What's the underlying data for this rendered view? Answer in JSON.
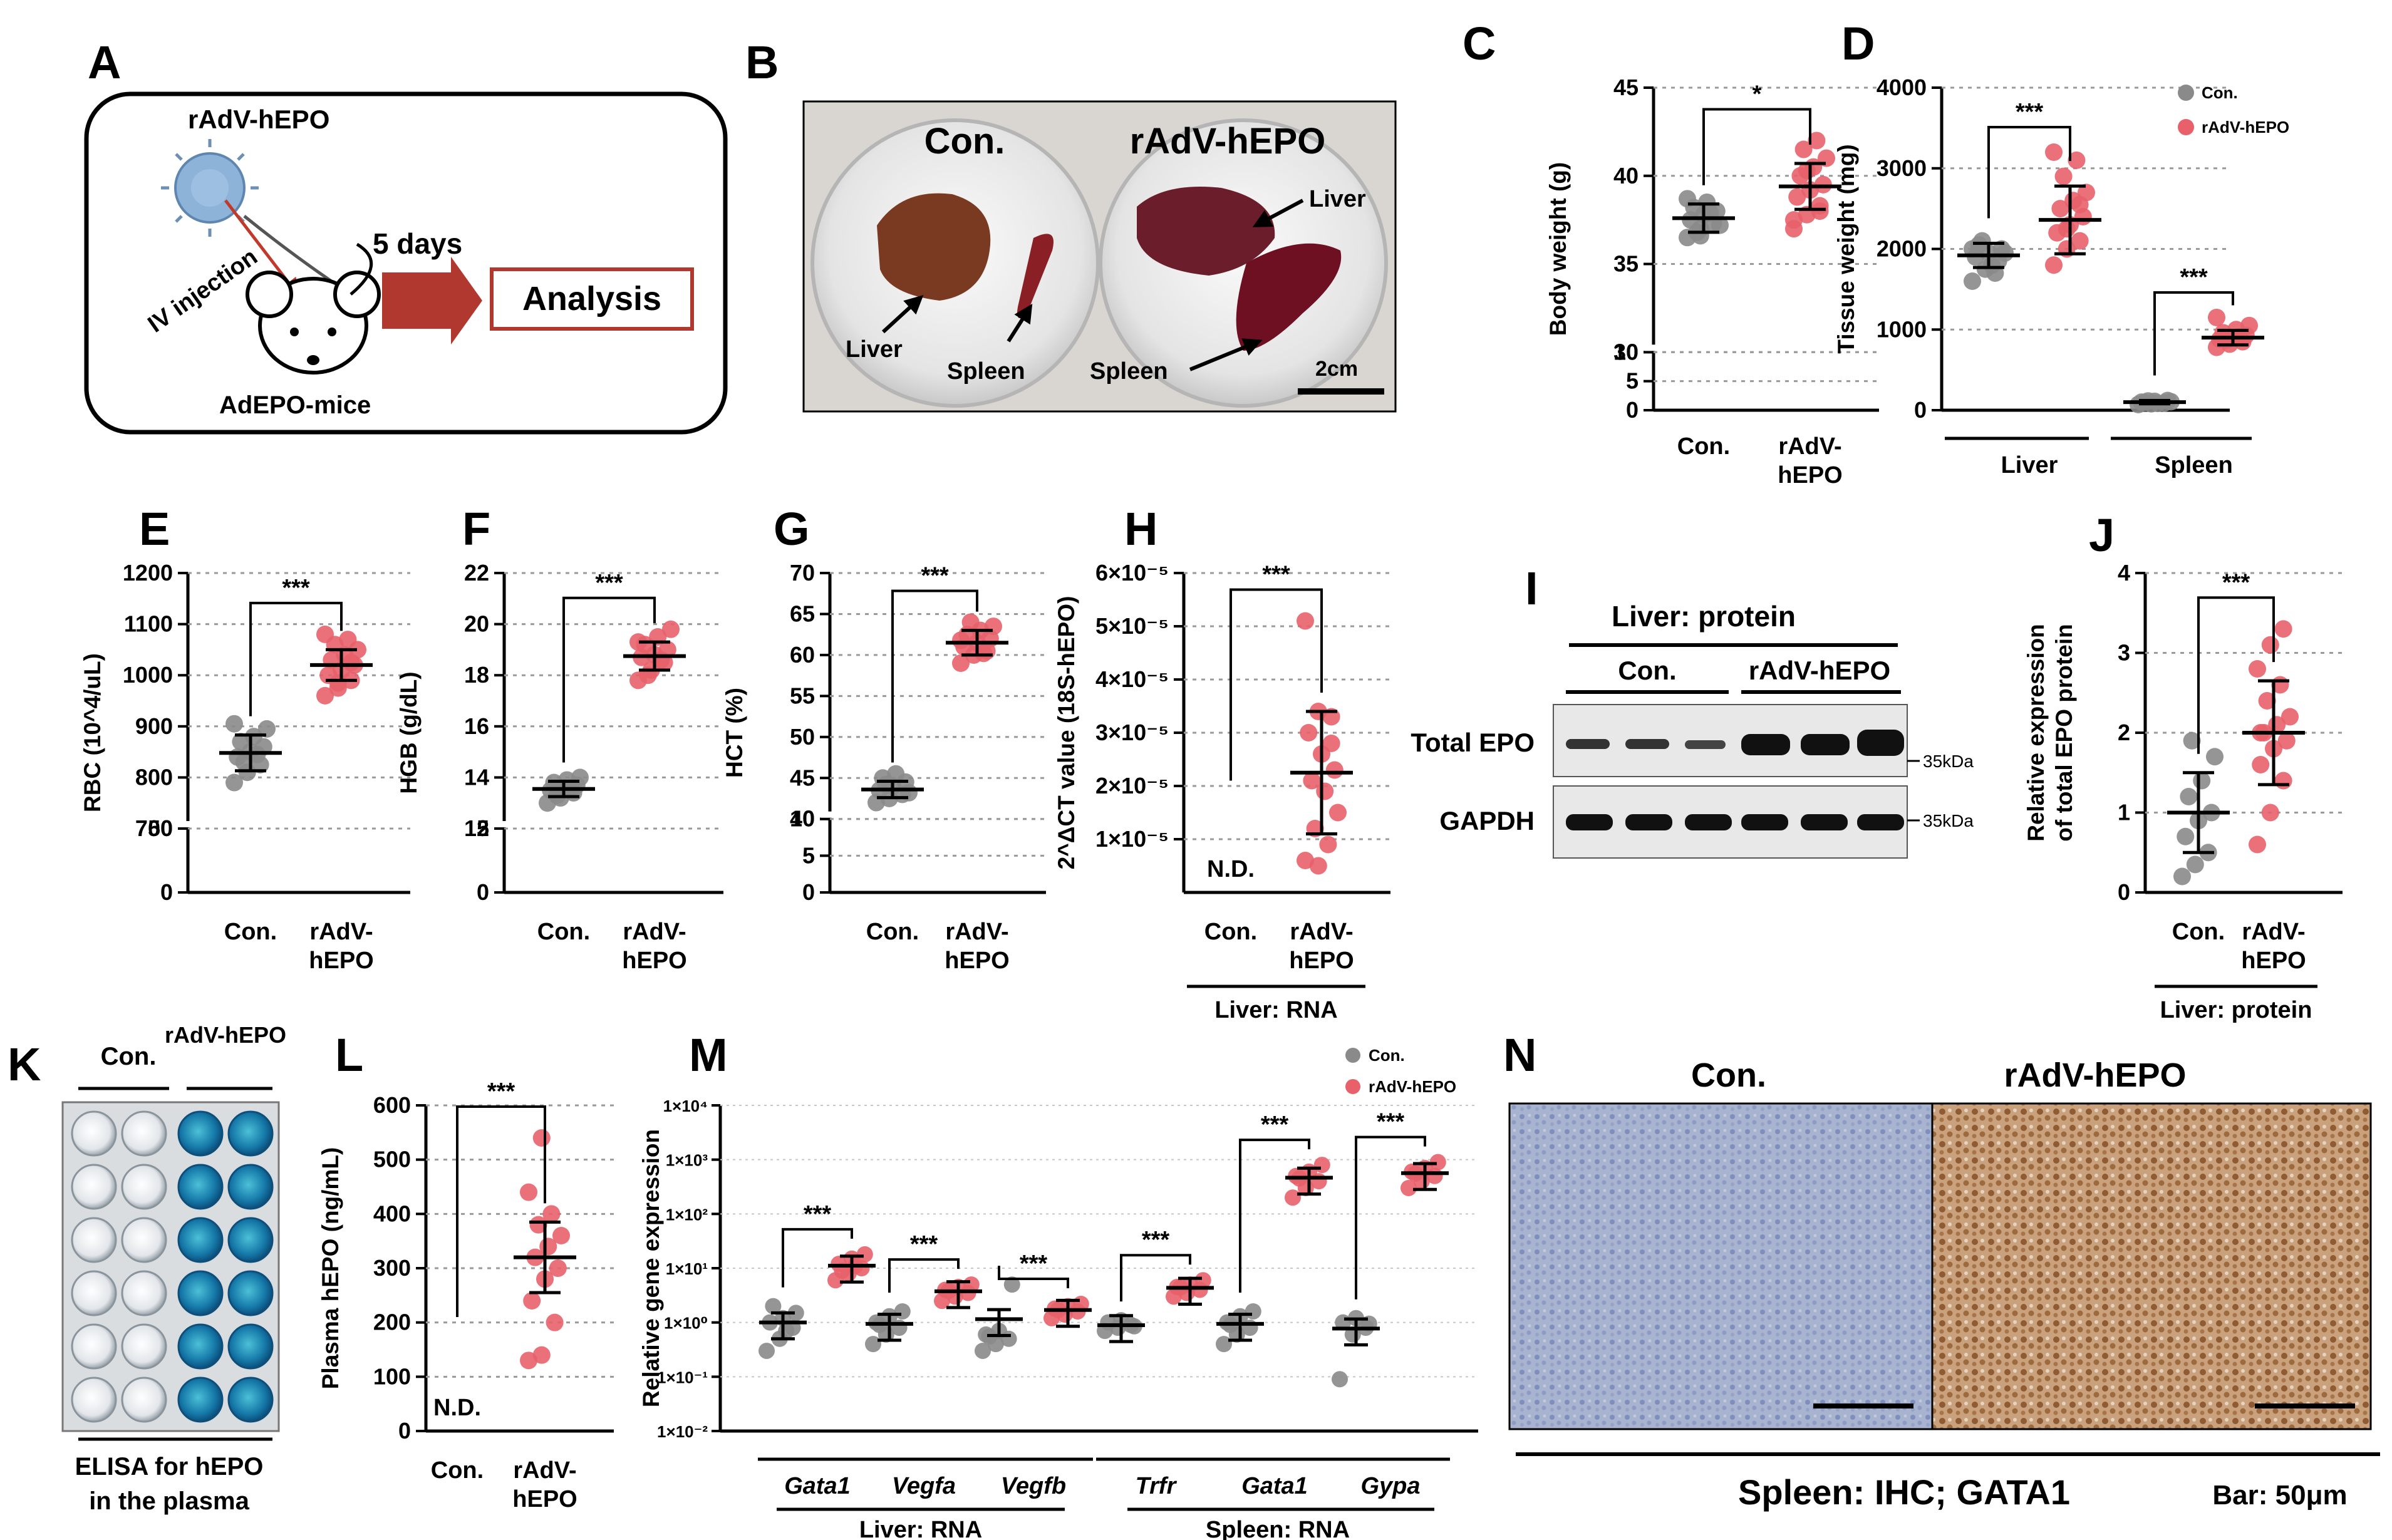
{
  "figure": {
    "colors": {
      "control": "#8a8a8a",
      "treated": "#e8606a",
      "errorbar": "#000000",
      "arrow": "#b0382f",
      "grid": "#9a9a9a"
    },
    "panel_A": {
      "label": "A",
      "virus": "rAdV-hEPO",
      "route": "IV injection",
      "duration": "5 days",
      "analysis": "Analysis",
      "mouse": "AdEPO-mice"
    },
    "panel_B": {
      "label": "B",
      "con": "Con.",
      "treated": "rAdV-hEPO",
      "liver_left": "Liver",
      "spleen_left": "Spleen",
      "liver_right": "Liver",
      "spleen_right": "Spleen",
      "scale": "2cm"
    },
    "panel_I": {
      "label": "I",
      "header": "Liver: protein",
      "group1": "Con.",
      "group2": "rAdV-hEPO",
      "band1": "Total EPO",
      "band2": "GAPDH",
      "marker1": "35kDa",
      "marker2": "35kDa"
    },
    "panel_K": {
      "label": "K",
      "group1": "Con.",
      "group2": "rAdV-hEPO",
      "caption1": "ELISA for hEPO",
      "caption2": "in the plasma"
    },
    "panel_N": {
      "label": "N",
      "con": "Con.",
      "treated": "rAdV-hEPO",
      "caption": "Spleen: IHC; GATA1",
      "bar": "Bar: 50μm"
    }
  },
  "chart_data": [
    {
      "panel": "C",
      "type": "scatter",
      "ylabel": "Body weight (g)",
      "categories": [
        "Con.",
        "rAdV-hEPO"
      ],
      "ylim": [
        0,
        45
      ],
      "axis_break": [
        10,
        30
      ],
      "yticks": [
        "0",
        "5",
        "10",
        "30",
        "35",
        "40",
        "45"
      ],
      "series": [
        {
          "name": "Con.",
          "values": [
            36.5,
            37.0,
            37.3,
            37.5,
            37.8,
            38.0,
            38.2,
            38.5,
            37.2,
            36.8,
            37.9,
            38.7,
            36.6
          ],
          "mean": 37.6,
          "sd": 0.8
        },
        {
          "name": "rAdV-hEPO",
          "values": [
            37.0,
            37.8,
            38.3,
            38.8,
            39.2,
            39.5,
            40.0,
            40.5,
            41.0,
            41.5,
            42.0,
            37.5,
            40.3,
            38.0
          ],
          "mean": 39.4,
          "sd": 1.3
        }
      ],
      "significance": [
        "*"
      ]
    },
    {
      "panel": "D",
      "type": "scatter",
      "ylabel": "Tissue weight (mg)",
      "categories": [
        "Liver",
        "Spleen"
      ],
      "ylim": [
        0,
        4000
      ],
      "yticks": [
        "0",
        "1000",
        "2000",
        "3000",
        "4000"
      ],
      "legend": [
        "Con.",
        "rAdV-hEPO"
      ],
      "groups": [
        {
          "category": "Liver",
          "con": {
            "values": [
              1600,
              1750,
              1850,
              1900,
              1950,
              2000,
              2050,
              1800,
              1950,
              2100,
              1700,
              2000
            ],
            "mean": 1920,
            "sd": 150
          },
          "treated": {
            "values": [
              1800,
              2000,
              2100,
              2200,
              2300,
              2400,
              2500,
              2600,
              2700,
              2900,
              3100,
              3200,
              2250,
              2550
            ],
            "mean": 2360,
            "sd": 420
          }
        },
        {
          "category": "Spleen",
          "con": {
            "values": [
              70,
              80,
              90,
              100,
              110,
              120,
              95,
              85,
              105,
              115
            ],
            "mean": 100,
            "sd": 20
          },
          "treated": {
            "values": [
              780,
              820,
              850,
              880,
              900,
              930,
              960,
              1000,
              1050,
              870,
              910,
              1150
            ],
            "mean": 900,
            "sd": 90
          }
        }
      ],
      "significance": [
        "***",
        "***"
      ]
    },
    {
      "panel": "E",
      "type": "scatter",
      "ylabel": "RBC (10^4/uL)",
      "categories": [
        "Con.",
        "rAdV-hEPO"
      ],
      "ylim": [
        0,
        1200
      ],
      "axis_break": [
        50,
        700
      ],
      "yticks": [
        "0",
        "50",
        "700",
        "800",
        "900",
        "1000",
        "1100",
        "1200"
      ],
      "series": [
        {
          "name": "Con.",
          "values": [
            790,
            810,
            825,
            840,
            850,
            860,
            870,
            880,
            895,
            830,
            845,
            905
          ],
          "mean": 848,
          "sd": 35
        },
        {
          "name": "rAdV-hEPO",
          "values": [
            960,
            975,
            990,
            1000,
            1010,
            1020,
            1030,
            1040,
            1050,
            1060,
            1070,
            1080,
            985,
            1025
          ],
          "mean": 1020,
          "sd": 30
        }
      ],
      "significance": [
        "***"
      ]
    },
    {
      "panel": "F",
      "type": "scatter",
      "ylabel": "HGB (g/dL)",
      "categories": [
        "Con.",
        "rAdV-hEPO"
      ],
      "ylim": [
        0,
        22
      ],
      "axis_break": [
        5,
        12
      ],
      "yticks": [
        "0",
        "5",
        "12",
        "14",
        "16",
        "18",
        "20",
        "22"
      ],
      "series": [
        {
          "name": "Con.",
          "values": [
            13.0,
            13.2,
            13.4,
            13.5,
            13.6,
            13.7,
            13.8,
            13.9,
            14.0,
            13.3,
            13.6
          ],
          "mean": 13.55,
          "sd": 0.3
        },
        {
          "name": "rAdV-hEPO",
          "values": [
            17.8,
            18.2,
            18.5,
            18.7,
            18.8,
            19.0,
            19.2,
            19.5,
            19.8,
            18.0,
            18.6,
            19.3
          ],
          "mean": 18.75,
          "sd": 0.55
        }
      ],
      "significance": [
        "***"
      ]
    },
    {
      "panel": "G",
      "type": "scatter",
      "ylabel": "HCT (%)",
      "categories": [
        "Con.",
        "rAdV-hEPO"
      ],
      "ylim": [
        0,
        70
      ],
      "axis_break": [
        10,
        40
      ],
      "yticks": [
        "0",
        "5",
        "10",
        "40",
        "45",
        "50",
        "55",
        "60",
        "65",
        "70"
      ],
      "series": [
        {
          "name": "Con.",
          "values": [
            42.0,
            42.5,
            43.0,
            43.5,
            44.0,
            44.5,
            45.0,
            45.5,
            43.2,
            44.2
          ],
          "mean": 43.6,
          "sd": 1.0
        },
        {
          "name": "rAdV-hEPO",
          "values": [
            59.0,
            60.0,
            60.5,
            61.0,
            61.5,
            62.0,
            62.5,
            63.0,
            63.5,
            64.0,
            60.2,
            61.8
          ],
          "mean": 61.5,
          "sd": 1.5
        }
      ],
      "significance": [
        "***"
      ]
    },
    {
      "panel": "H",
      "type": "scatter",
      "ylabel": "2^ΔCT value (18S-hEPO)",
      "categories": [
        "Con.",
        "rAdV-hEPO"
      ],
      "ylim": [
        0,
        6e-05
      ],
      "yticks": [
        "1×10⁻⁵",
        "2×10⁻⁵",
        "3×10⁻⁵",
        "4×10⁻⁵",
        "5×10⁻⁵",
        "6×10⁻⁵"
      ],
      "nd_label": "N.D.",
      "footer": "Liver: RNA",
      "series": [
        {
          "name": "Con.",
          "values": []
        },
        {
          "name": "rAdV-hEPO",
          "values": [
            5.1e-05,
            3.4e-05,
            3.3e-05,
            3e-05,
            2.6e-05,
            2.3e-05,
            2.1e-05,
            1.9e-05,
            1.5e-05,
            1.2e-05,
            9e-06,
            6e-06,
            5e-06,
            2.8e-05
          ],
          "mean": 2.25e-05,
          "sd": 1.15e-05
        }
      ],
      "significance": [
        "***"
      ]
    },
    {
      "panel": "J",
      "type": "scatter",
      "ylabel": "Relative expression of total EPO protein",
      "categories": [
        "Con.",
        "rAdV-hEPO"
      ],
      "ylim": [
        0,
        4
      ],
      "yticks": [
        "0",
        "1",
        "2",
        "3",
        "4"
      ],
      "footer": "Liver: protein",
      "series": [
        {
          "name": "Con.",
          "values": [
            0.2,
            0.35,
            0.5,
            0.7,
            0.9,
            1.0,
            1.2,
            1.4,
            1.7,
            1.9
          ],
          "mean": 1.0,
          "sd": 0.5
        },
        {
          "name": "rAdV-hEPO",
          "values": [
            0.6,
            1.0,
            1.4,
            1.6,
            1.8,
            1.9,
            2.0,
            2.1,
            2.2,
            2.4,
            2.6,
            2.8,
            3.1,
            3.3,
            2.0
          ],
          "mean": 2.0,
          "sd": 0.65
        }
      ],
      "significance": [
        "***"
      ]
    },
    {
      "panel": "L",
      "type": "scatter",
      "ylabel": "Plasma hEPO (ng/mL)",
      "categories": [
        "Con.",
        "rAdV-hEPO"
      ],
      "ylim": [
        0,
        600
      ],
      "yticks": [
        "0",
        "100",
        "200",
        "300",
        "400",
        "500",
        "600"
      ],
      "nd_label": "N.D.",
      "series": [
        {
          "name": "Con.",
          "values": []
        },
        {
          "name": "rAdV-hEPO",
          "values": [
            130,
            140,
            200,
            240,
            280,
            300,
            320,
            340,
            360,
            380,
            400,
            440,
            540
          ],
          "mean": 320,
          "sd": 65
        }
      ],
      "significance": [
        "***"
      ]
    },
    {
      "panel": "M",
      "type": "scatter",
      "ylabel": "Relative gene expression",
      "scale": "log",
      "ylim": [
        0.01,
        10000
      ],
      "yticks": [
        "1×10⁴",
        "1×10³",
        "1×10²",
        "1×10¹",
        "1×10⁰",
        "1×10⁻¹",
        "1×10⁻²"
      ],
      "legend": [
        "Con.",
        "rAdV-hEPO"
      ],
      "categories": [
        "Gata1",
        "Vegfa",
        "Vegfb",
        "Trfr",
        "Gata1",
        "Gypa"
      ],
      "group_labels": [
        "Liver: RNA",
        "Spleen: RNA"
      ],
      "groups": [
        {
          "gene": "Gata1",
          "con": [
            0.3,
            0.5,
            0.8,
            1.0,
            1.2,
            1.5,
            2.0,
            0.7
          ],
          "treated": [
            6,
            8,
            10,
            12,
            15,
            18,
            9,
            11
          ]
        },
        {
          "gene": "Vegfa",
          "con": [
            0.4,
            0.6,
            0.8,
            1.0,
            1.3,
            1.6,
            0.9
          ],
          "treated": [
            2.5,
            3.0,
            3.5,
            4.0,
            4.5,
            5.0,
            3.8
          ]
        },
        {
          "gene": "Vegfb",
          "con": [
            0.3,
            0.4,
            0.5,
            0.6,
            0.7,
            5.0,
            0.55
          ],
          "treated": [
            1.2,
            1.4,
            1.6,
            1.8,
            2.0,
            2.2,
            1.7
          ]
        },
        {
          "gene": "Trfr",
          "con": [
            0.7,
            0.8,
            0.9,
            1.0,
            1.1,
            0.85
          ],
          "treated": [
            3.0,
            3.5,
            4.0,
            4.5,
            5.0,
            6.0,
            4.4
          ]
        },
        {
          "gene": "Gata1",
          "con": [
            0.4,
            0.6,
            0.8,
            1.0,
            1.3,
            1.6,
            0.9
          ],
          "treated": [
            200,
            300,
            400,
            500,
            600,
            800,
            450
          ]
        },
        {
          "gene": "Gypa",
          "con": [
            0.09,
            0.6,
            0.8,
            1.0,
            1.2,
            0.95
          ],
          "treated": [
            300,
            400,
            500,
            600,
            700,
            900,
            550
          ]
        }
      ],
      "significance": [
        "***",
        "***",
        "***",
        "***",
        "***",
        "***"
      ]
    }
  ]
}
